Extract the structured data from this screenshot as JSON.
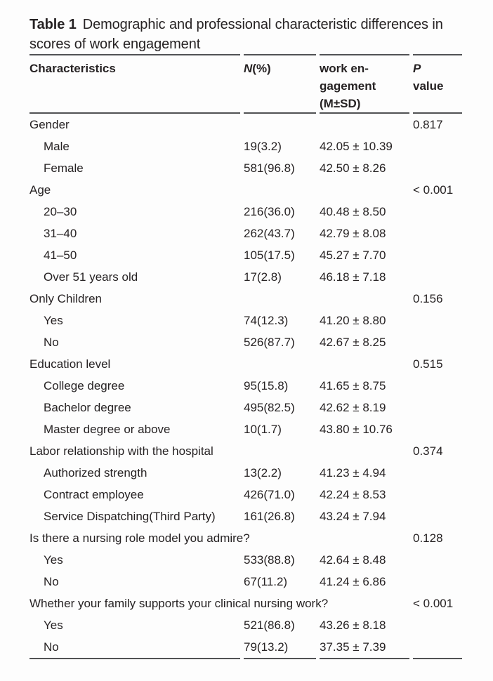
{
  "theme": {
    "page_bg": "#fdfdfd",
    "text_color": "#262223",
    "rule_color": "#515254"
  },
  "title": {
    "label": "Table 1",
    "text": "Demographic and professional characteristic differences in scores of work engagement"
  },
  "table": {
    "header": {
      "characteristics": "Characteristics",
      "n_italic": "N",
      "n_rest": "(%)",
      "engagement_lines": [
        "work en-",
        "gagement",
        "(M±SD)"
      ],
      "p_italic": "P",
      "p_rest": "value"
    },
    "rows": [
      {
        "label": "Gender",
        "indent": false,
        "n": "",
        "m_sd": "",
        "p": "0.817"
      },
      {
        "label": "Male",
        "indent": true,
        "n": "19(3.2)",
        "m_sd": "42.05 ± 10.39",
        "p": ""
      },
      {
        "label": "Female",
        "indent": true,
        "n": "581(96.8)",
        "m_sd": "42.50 ± 8.26",
        "p": ""
      },
      {
        "label": "Age",
        "indent": false,
        "n": "",
        "m_sd": "",
        "p": "< 0.001"
      },
      {
        "label": "20–30",
        "indent": true,
        "n": "216(36.0)",
        "m_sd": "40.48 ± 8.50",
        "p": ""
      },
      {
        "label": "31–40",
        "indent": true,
        "n": "262(43.7)",
        "m_sd": "42.79 ± 8.08",
        "p": ""
      },
      {
        "label": "41–50",
        "indent": true,
        "n": "105(17.5)",
        "m_sd": "45.27 ± 7.70",
        "p": ""
      },
      {
        "label": "Over 51 years old",
        "indent": true,
        "n": "17(2.8)",
        "m_sd": "46.18 ± 7.18",
        "p": ""
      },
      {
        "label": "Only Children",
        "indent": false,
        "n": "",
        "m_sd": "",
        "p": "0.156"
      },
      {
        "label": "Yes",
        "indent": true,
        "n": "74(12.3)",
        "m_sd": "41.20 ± 8.80",
        "p": ""
      },
      {
        "label": "No",
        "indent": true,
        "n": "526(87.7)",
        "m_sd": "42.67 ± 8.25",
        "p": ""
      },
      {
        "label": "Education level",
        "indent": false,
        "n": "",
        "m_sd": "",
        "p": "0.515"
      },
      {
        "label": "College degree",
        "indent": true,
        "n": "95(15.8)",
        "m_sd": "41.65 ± 8.75",
        "p": ""
      },
      {
        "label": "Bachelor degree",
        "indent": true,
        "n": "495(82.5)",
        "m_sd": "42.62 ± 8.19",
        "p": ""
      },
      {
        "label": "Master degree or above",
        "indent": true,
        "n": "10(1.7)",
        "m_sd": "43.80 ± 10.76",
        "p": ""
      },
      {
        "label": "Labor relationship with the hospital",
        "indent": false,
        "n": "",
        "m_sd": "",
        "p": "0.374"
      },
      {
        "label": "Authorized strength",
        "indent": true,
        "n": "13(2.2)",
        "m_sd": "41.23 ± 4.94",
        "p": ""
      },
      {
        "label": "Contract employee",
        "indent": true,
        "n": "426(71.0)",
        "m_sd": "42.24 ± 8.53",
        "p": ""
      },
      {
        "label": "Service Dispatching(Third Party)",
        "indent": true,
        "n": "161(26.8)",
        "m_sd": "43.24 ± 7.94",
        "p": ""
      },
      {
        "label": "Is there a nursing role model you admire?",
        "indent": false,
        "n": "",
        "m_sd": "",
        "p": "0.128"
      },
      {
        "label": "Yes",
        "indent": true,
        "n": "533(88.8)",
        "m_sd": "42.64 ± 8.48",
        "p": ""
      },
      {
        "label": "No",
        "indent": true,
        "n": "67(11.2)",
        "m_sd": "41.24 ± 6.86",
        "p": ""
      },
      {
        "label": "Whether your family supports your clinical nursing work?",
        "indent": false,
        "n": "",
        "m_sd": "",
        "p": "< 0.001"
      },
      {
        "label": "Yes",
        "indent": true,
        "n": "521(86.8)",
        "m_sd": "43.26 ± 8.18",
        "p": ""
      },
      {
        "label": "No",
        "indent": true,
        "n": "79(13.2)",
        "m_sd": "37.35 ± 7.39",
        "p": ""
      }
    ]
  }
}
